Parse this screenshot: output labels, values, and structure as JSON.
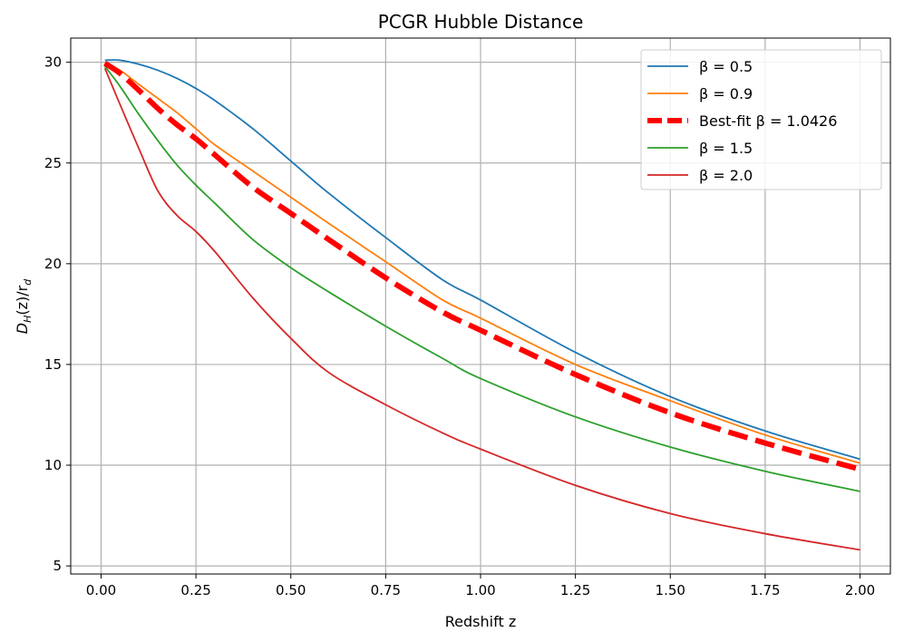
{
  "chart_data": {
    "type": "line",
    "title": "PCGR Hubble Distance",
    "xlabel": "Redshift z",
    "ylabel_main": "D",
    "ylabel_sub1": "H",
    "ylabel_mid": "(z)/r",
    "ylabel_sub2": "d",
    "xlim": [
      -0.08,
      2.08
    ],
    "ylim": [
      4.6,
      31.2
    ],
    "xticks": [
      0.0,
      0.25,
      0.5,
      0.75,
      1.0,
      1.25,
      1.5,
      1.75,
      2.0
    ],
    "xtick_labels": [
      "0.00",
      "0.25",
      "0.50",
      "0.75",
      "1.00",
      "1.25",
      "1.50",
      "1.75",
      "2.00"
    ],
    "yticks": [
      5,
      10,
      15,
      20,
      25,
      30
    ],
    "ytick_labels": [
      "5",
      "10",
      "15",
      "20",
      "25",
      "30"
    ],
    "grid": true,
    "legend_position": "top-right",
    "x": [
      0.01,
      0.05,
      0.1,
      0.15,
      0.2,
      0.25,
      0.3,
      0.4,
      0.5,
      0.6,
      0.75,
      0.9,
      1.0,
      1.25,
      1.5,
      1.75,
      2.0
    ],
    "series": [
      {
        "name": "β = 0.5",
        "color": "#1f77b4",
        "style": "solid",
        "values": [
          30.1,
          30.1,
          29.9,
          29.6,
          29.2,
          28.7,
          28.1,
          26.7,
          25.1,
          23.5,
          21.3,
          19.2,
          18.2,
          15.6,
          13.4,
          11.7,
          10.3
        ]
      },
      {
        "name": "β = 0.9",
        "color": "#ff7f0e",
        "style": "solid",
        "values": [
          30.0,
          29.6,
          28.9,
          28.2,
          27.5,
          26.7,
          25.9,
          24.6,
          23.3,
          22.0,
          20.1,
          18.2,
          17.3,
          15.0,
          13.2,
          11.5,
          10.1
        ]
      },
      {
        "name": "Best-fit β = 1.0426",
        "color": "#ff0000",
        "style": "dashed",
        "values": [
          29.95,
          29.45,
          28.6,
          27.7,
          26.9,
          26.2,
          25.4,
          23.8,
          22.5,
          21.2,
          19.3,
          17.6,
          16.7,
          14.5,
          12.6,
          11.1,
          9.8
        ]
      },
      {
        "name": "β = 1.5",
        "color": "#2ca02c",
        "style": "solid",
        "values": [
          29.8,
          28.8,
          27.4,
          26.1,
          24.9,
          23.9,
          23.0,
          21.2,
          19.8,
          18.6,
          16.9,
          15.3,
          14.3,
          12.4,
          10.9,
          9.7,
          8.7
        ]
      },
      {
        "name": "β = 2.0",
        "color": "#d62728",
        "style": "solid",
        "values": [
          29.7,
          27.9,
          25.7,
          23.6,
          22.4,
          21.6,
          20.6,
          18.3,
          16.3,
          14.6,
          13.0,
          11.6,
          10.8,
          9.0,
          7.6,
          6.6,
          5.8
        ]
      }
    ]
  }
}
